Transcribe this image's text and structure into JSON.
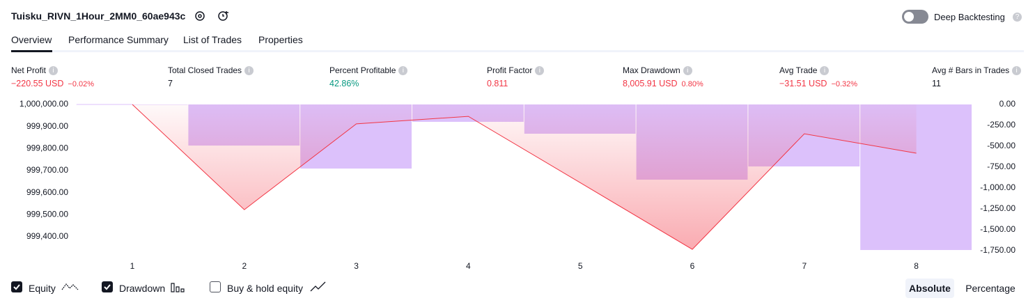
{
  "header": {
    "title": "Tuisku_RIVN_1Hour_2MM0_60ae943c",
    "toggle": "Deep Backtesting"
  },
  "tabs": [
    "Overview",
    "Performance Summary",
    "List of Trades",
    "Properties"
  ],
  "metrics": [
    {
      "label": "Net Profit",
      "value": "−220.55 USD",
      "change": "−0.02%"
    },
    {
      "label": "Total Closed Trades",
      "value": "7"
    },
    {
      "label": "Percent Profitable",
      "value": "42.86%"
    },
    {
      "label": "Profit Factor",
      "value": "0.811"
    },
    {
      "label": "Max Drawdown",
      "value": "8,005.91 USD",
      "change": "0.80%"
    },
    {
      "label": "Avg Trade",
      "value": "−31.51 USD",
      "change": "−0.32%"
    },
    {
      "label": "Avg # Bars in Trades",
      "value": "11"
    }
  ],
  "chart_data": {
    "type": "combo",
    "categories": [
      "1",
      "2",
      "3",
      "4",
      "5",
      "6",
      "7",
      "8"
    ],
    "series": [
      {
        "name": "Equity",
        "type": "area",
        "color": "#f23645",
        "axis": "y",
        "values": [
          1000000,
          999523,
          999912,
          999946,
          999645,
          999343,
          999867,
          999779
        ]
      },
      {
        "name": "Drawdown",
        "type": "bar",
        "color": "#dcc1fb",
        "axis": "y2",
        "values": [
          0,
          -492,
          -767,
          -208,
          -350,
          -900,
          -742,
          -1742
        ]
      }
    ],
    "ylim": [
      999337,
      1000000
    ],
    "yticks": [
      {
        "value": 1000000,
        "label": "1,000,000.00"
      },
      {
        "value": 999900,
        "label": "999,900.00"
      },
      {
        "value": 999800,
        "label": "999,800.00"
      },
      {
        "value": 999700,
        "label": "999,700.00"
      },
      {
        "value": 999600,
        "label": "999,600.00"
      },
      {
        "value": 999500,
        "label": "999,500.00"
      },
      {
        "value": 999400,
        "label": "999,400.00"
      }
    ],
    "y2lim": [
      -1750,
      0
    ],
    "y2ticks": [
      {
        "value": 0,
        "label": "0.00"
      },
      {
        "value": -250,
        "label": "-250.00"
      },
      {
        "value": -500,
        "label": "-500.00"
      },
      {
        "value": -750,
        "label": "-750.00"
      },
      {
        "value": -1000,
        "label": "-1,000.00"
      },
      {
        "value": -1250,
        "label": "-1,250.00"
      },
      {
        "value": -1500,
        "label": "-1,500.00"
      },
      {
        "value": -1750,
        "label": "-1,750.00"
      }
    ]
  },
  "footer": {
    "extra_legend": "Buy & hold equity",
    "buttons": [
      "Absolute",
      "Percentage"
    ]
  }
}
